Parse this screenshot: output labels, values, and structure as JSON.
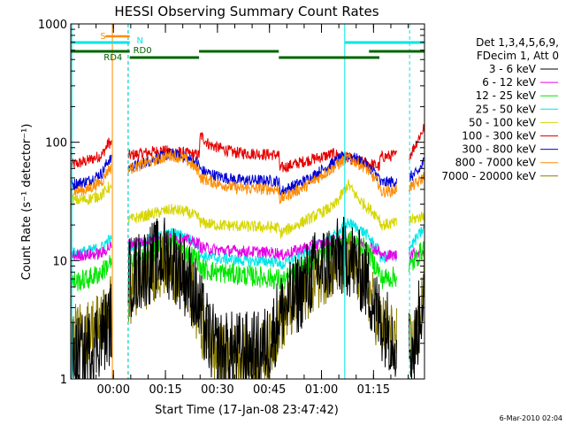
{
  "chart_data": {
    "type": "line",
    "title": "HESSI Observing Summary Count Rates",
    "xlabel": "Start Time (17-Jan-08 23:47:42)",
    "ylabel": "Count Rate (s⁻¹ detector⁻¹)",
    "y_scale": "log",
    "ylim": [
      1,
      1000
    ],
    "xlim_minutes_from_start": [
      0,
      102
    ],
    "x_ticks": [
      {
        "t": 12.3,
        "label": "00:00"
      },
      {
        "t": 27.3,
        "label": "00:15"
      },
      {
        "t": 42.3,
        "label": "00:30"
      },
      {
        "t": 57.3,
        "label": "00:45"
      },
      {
        "t": 72.3,
        "label": "01:00"
      },
      {
        "t": 87.3,
        "label": "01:15"
      }
    ],
    "y_ticks": [
      {
        "v": 1,
        "label": "1"
      },
      {
        "v": 10,
        "label": "10"
      },
      {
        "v": 100,
        "label": "100"
      },
      {
        "v": 1000,
        "label": "1000"
      }
    ],
    "legend": {
      "placement": "right",
      "header": [
        "Det 1,3,4,5,6,9,",
        "FDecim 1, Att 0"
      ],
      "entries": [
        {
          "label": "3 - 6 keV",
          "color": "#000000"
        },
        {
          "label": "6 - 12 keV",
          "color": "#e600e6"
        },
        {
          "label": "12 - 25 keV",
          "color": "#00e600"
        },
        {
          "label": "25 - 50 keV",
          "color": "#00e6e6"
        },
        {
          "label": "50 - 100 keV",
          "color": "#d6d600"
        },
        {
          "label": "100 - 300 keV",
          "color": "#e60000"
        },
        {
          "label": "300 - 800 keV",
          "color": "#0000d6"
        },
        {
          "label": "800 - 7000 keV",
          "color": "#ff8c00"
        },
        {
          "label": "7000 - 20000 keV",
          "color": "#8b7d00"
        }
      ]
    },
    "flags": [
      {
        "label": "S",
        "color": "#ff8c00"
      },
      {
        "label": "N",
        "color": "#00e6e6"
      },
      {
        "label": "RD0",
        "color": "#006400"
      },
      {
        "label": "RD4",
        "color": "#006400"
      }
    ],
    "series": [
      {
        "name": "100 - 300 keV",
        "color": "#e60000",
        "points": [
          [
            0,
            64
          ],
          [
            5,
            70
          ],
          [
            9,
            78
          ],
          [
            11,
            100
          ],
          [
            16.5,
            77
          ],
          [
            20,
            80
          ],
          [
            26,
            85
          ],
          [
            30,
            83
          ],
          [
            37,
            78
          ],
          [
            37.4,
            115
          ],
          [
            40,
            95
          ],
          [
            47,
            82
          ],
          [
            60,
            78
          ],
          [
            60.3,
            60
          ],
          [
            68,
            70
          ],
          [
            76,
            80
          ],
          [
            82,
            70
          ],
          [
            87,
            65
          ],
          [
            89,
            62
          ],
          [
            89.3,
            75
          ],
          [
            98,
            80
          ],
          [
            102,
            135
          ]
        ]
      },
      {
        "name": "300 - 800 keV",
        "color": "#0000d6",
        "points": [
          [
            0,
            44
          ],
          [
            5,
            47
          ],
          [
            9,
            55
          ],
          [
            11,
            72
          ],
          [
            16.5,
            60
          ],
          [
            24,
            72
          ],
          [
            29,
            80
          ],
          [
            33,
            75
          ],
          [
            37,
            65
          ],
          [
            37.4,
            58
          ],
          [
            42,
            52
          ],
          [
            48,
            48
          ],
          [
            60,
            47
          ],
          [
            60.3,
            38
          ],
          [
            68,
            48
          ],
          [
            76,
            68
          ],
          [
            80,
            78
          ],
          [
            85,
            66
          ],
          [
            89,
            50
          ],
          [
            89.3,
            45
          ],
          [
            96,
            48
          ],
          [
            100,
            55
          ],
          [
            102,
            70
          ]
        ]
      },
      {
        "name": "800 - 7000 keV",
        "color": "#ff8c00",
        "points": [
          [
            0,
            38
          ],
          [
            5,
            40
          ],
          [
            9,
            47
          ],
          [
            11,
            60
          ],
          [
            16.5,
            59
          ],
          [
            24,
            70
          ],
          [
            29,
            78
          ],
          [
            33,
            72
          ],
          [
            37,
            57
          ],
          [
            37.4,
            50
          ],
          [
            42,
            45
          ],
          [
            48,
            41
          ],
          [
            60,
            40
          ],
          [
            60.3,
            33
          ],
          [
            68,
            43
          ],
          [
            76,
            62
          ],
          [
            80,
            74
          ],
          [
            85,
            61
          ],
          [
            89,
            44
          ],
          [
            89.3,
            38
          ],
          [
            96,
            40
          ],
          [
            100,
            45
          ],
          [
            102,
            52
          ]
        ]
      },
      {
        "name": "50 - 100 keV",
        "color": "#d6d600",
        "points": [
          [
            0,
            32
          ],
          [
            5,
            33
          ],
          [
            9,
            36
          ],
          [
            11,
            42
          ],
          [
            16.5,
            22
          ],
          [
            24,
            25
          ],
          [
            29,
            27
          ],
          [
            33,
            26
          ],
          [
            37,
            23
          ],
          [
            37.4,
            21
          ],
          [
            42,
            20
          ],
          [
            50,
            19.5
          ],
          [
            60,
            19
          ],
          [
            60.3,
            17
          ],
          [
            68,
            22
          ],
          [
            76,
            29
          ],
          [
            80,
            44
          ],
          [
            83,
            33
          ],
          [
            89,
            23
          ],
          [
            89.3,
            20
          ],
          [
            96,
            21
          ],
          [
            102,
            24
          ]
        ]
      },
      {
        "name": "25 - 50 keV",
        "color": "#00e6e6",
        "points": [
          [
            0,
            11.5
          ],
          [
            5,
            12
          ],
          [
            9,
            13
          ],
          [
            11,
            15
          ],
          [
            16.5,
            13
          ],
          [
            24,
            15.5
          ],
          [
            29,
            17
          ],
          [
            33,
            16
          ],
          [
            37,
            13.5
          ],
          [
            37.4,
            11
          ],
          [
            42,
            10.5
          ],
          [
            50,
            10
          ],
          [
            60,
            9.8
          ],
          [
            60.3,
            9
          ],
          [
            68,
            12
          ],
          [
            76,
            16
          ],
          [
            80,
            21
          ],
          [
            85,
            17
          ],
          [
            89,
            12
          ],
          [
            89.3,
            10.5
          ],
          [
            96,
            11
          ],
          [
            102,
            19
          ]
        ]
      },
      {
        "name": "6 - 12 keV",
        "color": "#e600e6",
        "points": [
          [
            0,
            11
          ],
          [
            5,
            11.2
          ],
          [
            9,
            11.5
          ],
          [
            11,
            13
          ],
          [
            16.5,
            14
          ],
          [
            24,
            15
          ],
          [
            29,
            15.5
          ],
          [
            33,
            15
          ],
          [
            37,
            14
          ],
          [
            37.4,
            13
          ],
          [
            42,
            12.3
          ],
          [
            50,
            12
          ],
          [
            60,
            11.6
          ],
          [
            60.3,
            11
          ],
          [
            68,
            13
          ],
          [
            76,
            14.5
          ],
          [
            80,
            15
          ],
          [
            85,
            13.5
          ],
          [
            89,
            12
          ],
          [
            89.3,
            11
          ],
          [
            96,
            11.2
          ],
          [
            102,
            12
          ]
        ]
      },
      {
        "name": "12 - 25 keV",
        "color": "#00e600",
        "points": [
          [
            0,
            6.5
          ],
          [
            5,
            7
          ],
          [
            9,
            8
          ],
          [
            11,
            9.5
          ],
          [
            16.5,
            9
          ],
          [
            24,
            12
          ],
          [
            29,
            14
          ],
          [
            33,
            12
          ],
          [
            37,
            10
          ],
          [
            37.4,
            8.5
          ],
          [
            42,
            8
          ],
          [
            50,
            7.5
          ],
          [
            60,
            7
          ],
          [
            60.3,
            6.5
          ],
          [
            68,
            9
          ],
          [
            76,
            13
          ],
          [
            80,
            15.5
          ],
          [
            85,
            12.5
          ],
          [
            89,
            8
          ],
          [
            89.3,
            7
          ],
          [
            96,
            7.5
          ],
          [
            102,
            13
          ]
        ]
      },
      {
        "name": "7000 - 20000 keV",
        "color": "#8b7d00",
        "points": [
          [
            0,
            2.2
          ],
          [
            5,
            2.5
          ],
          [
            9,
            3.2
          ],
          [
            11,
            4
          ],
          [
            16.5,
            5
          ],
          [
            24,
            8.5
          ],
          [
            27,
            9.5
          ],
          [
            31,
            8
          ],
          [
            35,
            5
          ],
          [
            37,
            3.3
          ],
          [
            39,
            2.4
          ],
          [
            42,
            1.6
          ],
          [
            55,
            1.6
          ],
          [
            58,
            2
          ],
          [
            60,
            3
          ],
          [
            65,
            4.5
          ],
          [
            70,
            7
          ],
          [
            75,
            8.7
          ],
          [
            80,
            9.5
          ],
          [
            85,
            6.5
          ],
          [
            89,
            3
          ],
          [
            95,
            2
          ],
          [
            99,
            1.9
          ],
          [
            102,
            7
          ]
        ]
      },
      {
        "name": "3 - 6 keV",
        "color": "#000000",
        "points": [
          [
            0,
            1.5
          ],
          [
            4,
            1.6
          ],
          [
            8,
            2.2
          ],
          [
            11,
            2.8
          ],
          [
            16.5,
            7
          ],
          [
            24,
            10
          ],
          [
            27,
            11
          ],
          [
            31,
            9
          ],
          [
            35,
            6
          ],
          [
            37,
            4
          ],
          [
            39,
            2.6
          ],
          [
            42,
            1.7
          ],
          [
            55,
            1.7
          ],
          [
            58,
            2.3
          ],
          [
            60,
            3.5
          ],
          [
            65,
            5
          ],
          [
            70,
            8
          ],
          [
            75,
            10
          ],
          [
            80,
            11
          ],
          [
            85,
            7
          ],
          [
            89,
            3.2
          ],
          [
            95,
            2
          ],
          [
            99,
            1.8
          ],
          [
            102,
            6
          ]
        ]
      }
    ]
  },
  "footer": {
    "timestamp": "6-Mar-2010 02:04"
  }
}
